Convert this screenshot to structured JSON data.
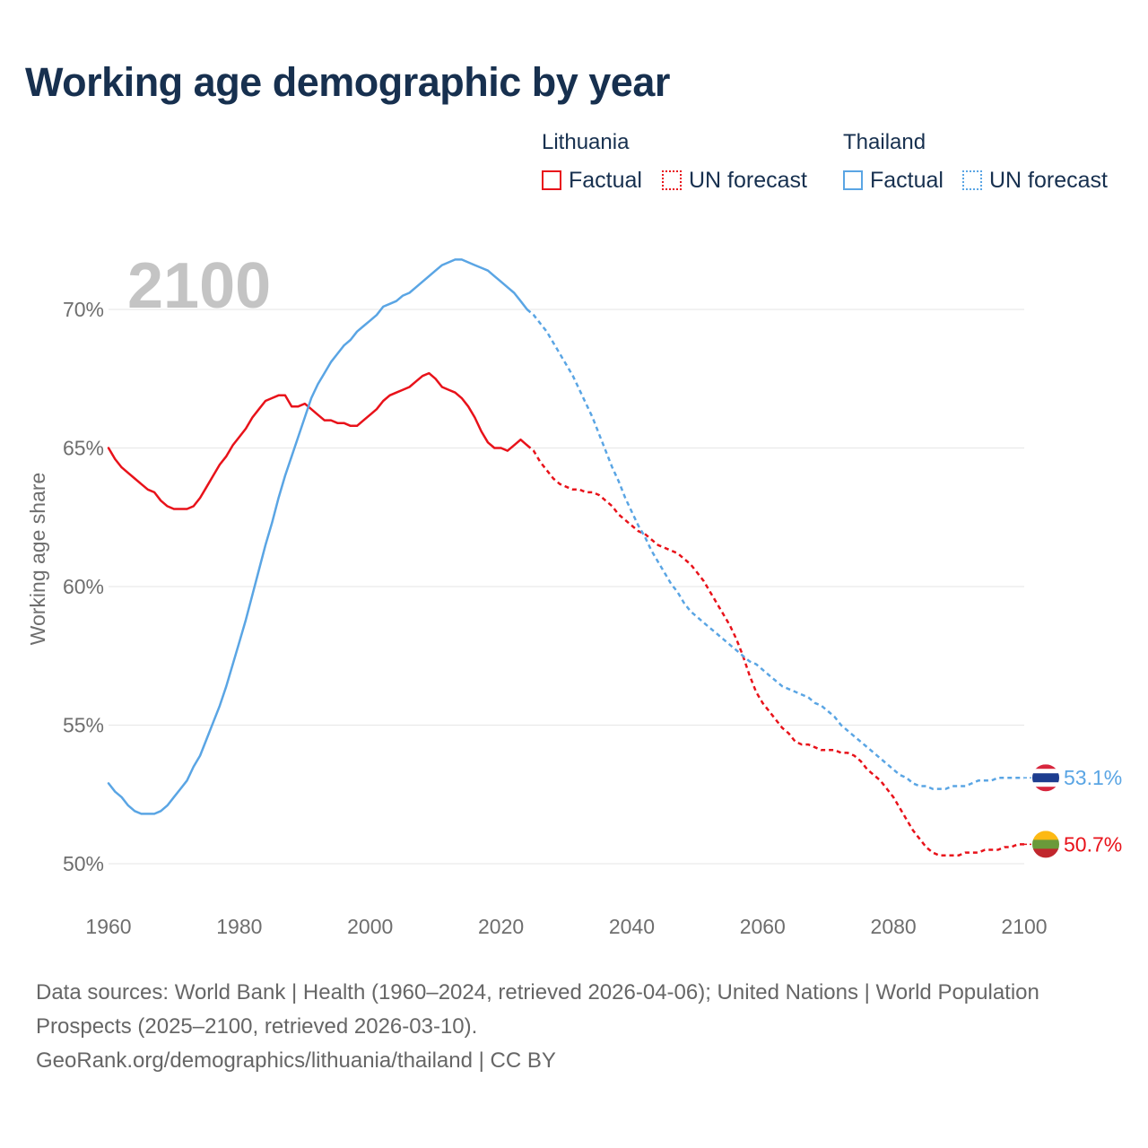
{
  "title": "Working age demographic by year",
  "legend": {
    "groups": [
      {
        "country": "Lithuania",
        "factual_label": "Factual",
        "forecast_label": "UN forecast",
        "color": "#e8121a"
      },
      {
        "country": "Thailand",
        "factual_label": "Factual",
        "forecast_label": "UN forecast",
        "color": "#5aa5e4"
      }
    ]
  },
  "year_overlay": "2100",
  "sources": {
    "line1": "Data sources: World Bank | Health (1960–2024, retrieved 2026-04-06); United Nations | World Population Prospects (2025–2100, retrieved 2026-03-10).",
    "line2": "GeoRank.org/demographics/lithuania/thailand | CC BY"
  },
  "chart_data": {
    "type": "line",
    "title": "Working age demographic by year",
    "xlabel": "",
    "ylabel": "Working age share",
    "xlim": [
      1960,
      2100
    ],
    "ylim": [
      49.5,
      71.8
    ],
    "xticks": [
      1960,
      1980,
      2000,
      2020,
      2040,
      2060,
      2080,
      2100
    ],
    "xtick_labels": [
      "1960",
      "1980",
      "2000",
      "2020",
      "2040",
      "2060",
      "2080",
      "2100"
    ],
    "yticks": [
      50,
      55,
      60,
      65,
      70
    ],
    "ytick_labels": [
      "50%",
      "55%",
      "60%",
      "65%",
      "70%"
    ],
    "grid": true,
    "factual_last_year": 2024,
    "series": [
      {
        "name": "Lithuania",
        "color": "#e8121a",
        "end_label": "50.7%",
        "x": [
          1960,
          1961,
          1962,
          1963,
          1964,
          1965,
          1966,
          1967,
          1968,
          1969,
          1970,
          1971,
          1972,
          1973,
          1974,
          1975,
          1976,
          1977,
          1978,
          1979,
          1980,
          1981,
          1982,
          1983,
          1984,
          1985,
          1986,
          1987,
          1988,
          1989,
          1990,
          1991,
          1992,
          1993,
          1994,
          1995,
          1996,
          1997,
          1998,
          1999,
          2000,
          2001,
          2002,
          2003,
          2004,
          2005,
          2006,
          2007,
          2008,
          2009,
          2010,
          2011,
          2012,
          2013,
          2014,
          2015,
          2016,
          2017,
          2018,
          2019,
          2020,
          2021,
          2022,
          2023,
          2024,
          2025,
          2026,
          2027,
          2028,
          2029,
          2030,
          2031,
          2032,
          2033,
          2034,
          2035,
          2036,
          2037,
          2038,
          2039,
          2040,
          2041,
          2042,
          2043,
          2044,
          2045,
          2046,
          2047,
          2048,
          2049,
          2050,
          2051,
          2052,
          2053,
          2054,
          2055,
          2056,
          2057,
          2058,
          2059,
          2060,
          2061,
          2062,
          2063,
          2064,
          2065,
          2066,
          2067,
          2068,
          2069,
          2070,
          2071,
          2072,
          2073,
          2074,
          2075,
          2076,
          2077,
          2078,
          2079,
          2080,
          2081,
          2082,
          2083,
          2084,
          2085,
          2086,
          2087,
          2088,
          2089,
          2090,
          2091,
          2092,
          2093,
          2094,
          2095,
          2096,
          2097,
          2098,
          2099,
          2100
        ],
        "values": [
          65.0,
          64.6,
          64.3,
          64.1,
          63.9,
          63.7,
          63.5,
          63.4,
          63.1,
          62.9,
          62.8,
          62.8,
          62.8,
          62.9,
          63.2,
          63.6,
          64.0,
          64.4,
          64.7,
          65.1,
          65.4,
          65.7,
          66.1,
          66.4,
          66.7,
          66.8,
          66.9,
          66.9,
          66.5,
          66.5,
          66.6,
          66.4,
          66.2,
          66.0,
          66.0,
          65.9,
          65.9,
          65.8,
          65.8,
          66.0,
          66.2,
          66.4,
          66.7,
          66.9,
          67.0,
          67.1,
          67.2,
          67.4,
          67.6,
          67.7,
          67.5,
          67.2,
          67.1,
          67.0,
          66.8,
          66.5,
          66.1,
          65.6,
          65.2,
          65.0,
          65.0,
          64.9,
          65.1,
          65.3,
          65.1,
          64.9,
          64.5,
          64.2,
          63.9,
          63.7,
          63.6,
          63.5,
          63.5,
          63.4,
          63.4,
          63.3,
          63.1,
          62.9,
          62.6,
          62.4,
          62.2,
          62.0,
          61.9,
          61.7,
          61.5,
          61.4,
          61.3,
          61.2,
          61.0,
          60.8,
          60.5,
          60.2,
          59.8,
          59.4,
          59.0,
          58.6,
          58.1,
          57.5,
          56.8,
          56.2,
          55.8,
          55.5,
          55.2,
          54.9,
          54.7,
          54.4,
          54.3,
          54.3,
          54.2,
          54.1,
          54.1,
          54.1,
          54.0,
          54.0,
          53.9,
          53.7,
          53.4,
          53.2,
          53.0,
          52.7,
          52.4,
          52.0,
          51.6,
          51.2,
          50.9,
          50.6,
          50.4,
          50.3,
          50.3,
          50.3,
          50.3,
          50.4,
          50.4,
          50.4,
          50.5,
          50.5,
          50.5,
          50.6,
          50.6,
          50.7,
          50.7
        ]
      },
      {
        "name": "Thailand",
        "color": "#5aa5e4",
        "end_label": "53.1%",
        "x": [
          1960,
          1961,
          1962,
          1963,
          1964,
          1965,
          1966,
          1967,
          1968,
          1969,
          1970,
          1971,
          1972,
          1973,
          1974,
          1975,
          1976,
          1977,
          1978,
          1979,
          1980,
          1981,
          1982,
          1983,
          1984,
          1985,
          1986,
          1987,
          1988,
          1989,
          1990,
          1991,
          1992,
          1993,
          1994,
          1995,
          1996,
          1997,
          1998,
          1999,
          2000,
          2001,
          2002,
          2003,
          2004,
          2005,
          2006,
          2007,
          2008,
          2009,
          2010,
          2011,
          2012,
          2013,
          2014,
          2015,
          2016,
          2017,
          2018,
          2019,
          2020,
          2021,
          2022,
          2023,
          2024,
          2025,
          2026,
          2027,
          2028,
          2029,
          2030,
          2031,
          2032,
          2033,
          2034,
          2035,
          2036,
          2037,
          2038,
          2039,
          2040,
          2041,
          2042,
          2043,
          2044,
          2045,
          2046,
          2047,
          2048,
          2049,
          2050,
          2051,
          2052,
          2053,
          2054,
          2055,
          2056,
          2057,
          2058,
          2059,
          2060,
          2061,
          2062,
          2063,
          2064,
          2065,
          2066,
          2067,
          2068,
          2069,
          2070,
          2071,
          2072,
          2073,
          2074,
          2075,
          2076,
          2077,
          2078,
          2079,
          2080,
          2081,
          2082,
          2083,
          2084,
          2085,
          2086,
          2087,
          2088,
          2089,
          2090,
          2091,
          2092,
          2093,
          2094,
          2095,
          2096,
          2097,
          2098,
          2099,
          2100
        ],
        "values": [
          52.9,
          52.6,
          52.4,
          52.1,
          51.9,
          51.8,
          51.8,
          51.8,
          51.9,
          52.1,
          52.4,
          52.7,
          53.0,
          53.5,
          53.9,
          54.5,
          55.1,
          55.7,
          56.4,
          57.2,
          58.0,
          58.8,
          59.7,
          60.6,
          61.5,
          62.3,
          63.2,
          64.0,
          64.7,
          65.4,
          66.1,
          66.8,
          67.3,
          67.7,
          68.1,
          68.4,
          68.7,
          68.9,
          69.2,
          69.4,
          69.6,
          69.8,
          70.1,
          70.2,
          70.3,
          70.5,
          70.6,
          70.8,
          71.0,
          71.2,
          71.4,
          71.6,
          71.7,
          71.8,
          71.8,
          71.7,
          71.6,
          71.5,
          71.4,
          71.2,
          71.0,
          70.8,
          70.6,
          70.3,
          70.0,
          69.8,
          69.5,
          69.2,
          68.8,
          68.4,
          68.0,
          67.6,
          67.1,
          66.6,
          66.1,
          65.5,
          64.9,
          64.3,
          63.8,
          63.2,
          62.7,
          62.2,
          61.8,
          61.3,
          60.9,
          60.5,
          60.1,
          59.8,
          59.4,
          59.1,
          58.9,
          58.7,
          58.5,
          58.3,
          58.1,
          57.9,
          57.7,
          57.5,
          57.3,
          57.2,
          57.0,
          56.8,
          56.6,
          56.4,
          56.3,
          56.2,
          56.1,
          56.0,
          55.8,
          55.7,
          55.5,
          55.3,
          55.0,
          54.8,
          54.6,
          54.4,
          54.2,
          54.0,
          53.8,
          53.6,
          53.4,
          53.2,
          53.1,
          52.9,
          52.8,
          52.8,
          52.7,
          52.7,
          52.7,
          52.8,
          52.8,
          52.8,
          52.9,
          53.0,
          53.0,
          53.0,
          53.1,
          53.1,
          53.1,
          53.1,
          53.1
        ]
      }
    ]
  }
}
